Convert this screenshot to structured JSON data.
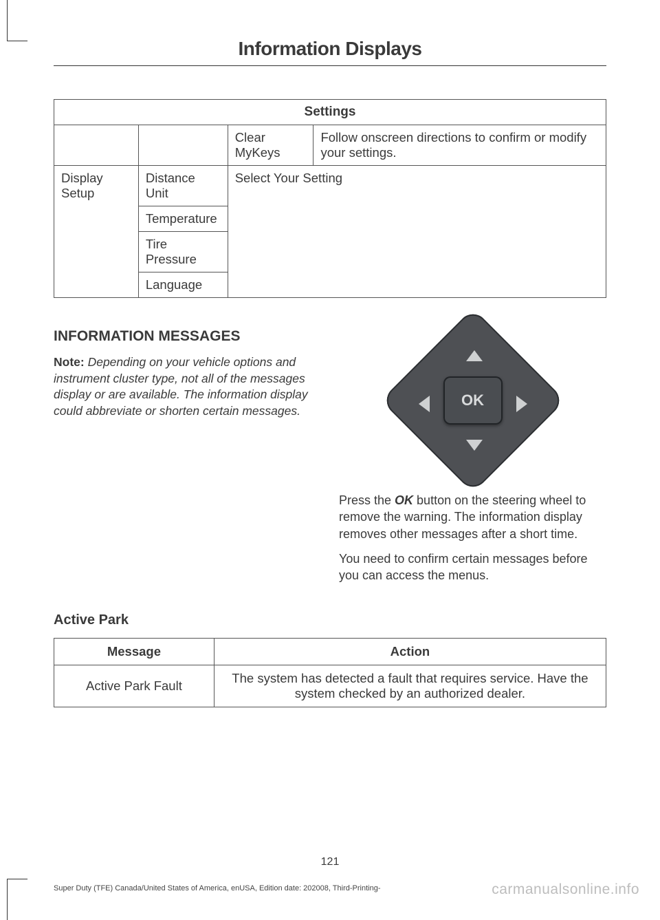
{
  "header": {
    "title": "Information Displays"
  },
  "settings_table": {
    "header": "Settings",
    "row_mykeys": {
      "c3": "Clear MyKeys",
      "c4": "Follow onscreen directions to confirm or modify your settings."
    },
    "display_setup_label": "Display Setup",
    "distance_label": "Distance Unit",
    "temperature_label": "Temperature",
    "tire_label": "Tire Pressure",
    "language_label": "Language",
    "select_label": "Select Your Setting"
  },
  "info_section": {
    "heading": "INFORMATION MESSAGES",
    "note_label": "Note:",
    "note_text": " Depending on your vehicle options and instrument cluster type, not all of the messages display or are available. The information display could abbreviate or shorten certain messages."
  },
  "ok_button": {
    "label": "OK"
  },
  "right_body": {
    "p1_a": "Press the ",
    "p1_bold": "OK",
    "p1_b": " button on the steering wheel to remove the warning.  The information display removes other messages after a short time.",
    "p2": "You need to confirm certain messages before you can access the menus."
  },
  "active_park": {
    "heading": "Active Park",
    "col_msg": "Message",
    "col_act": "Action",
    "row1_msg": "Active Park Fault",
    "row1_act": "The system has detected a fault that requires service.  Have the system checked by an authorized dealer."
  },
  "page_number": "121",
  "footer": "Super Duty (TFE) Canada/United States of America, enUSA, Edition date: 202008, Third-Printing-",
  "watermark": "carmanualsonline.info"
}
